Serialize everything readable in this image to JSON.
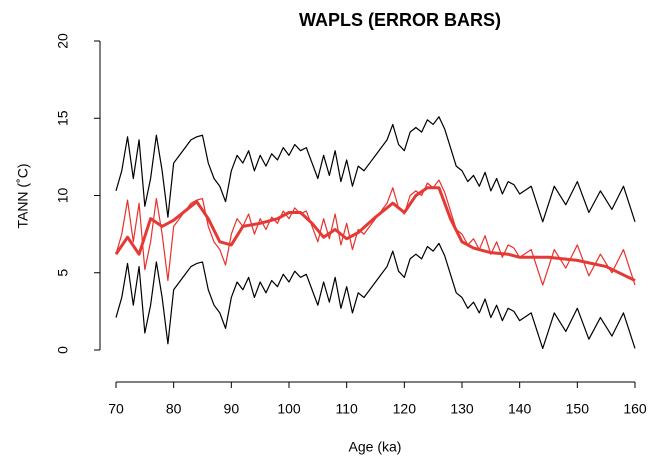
{
  "chart_data": {
    "type": "line",
    "title": "WAPLS (ERROR BARS)",
    "x_label": "Age (ka)",
    "y_label": "TANN (˚C)",
    "xlim": [
      70,
      160
    ],
    "xticks": [
      70,
      80,
      90,
      100,
      110,
      120,
      130,
      140,
      150,
      160
    ],
    "ylim": [
      0,
      20
    ],
    "yticks": [
      0,
      5,
      10,
      15,
      20
    ],
    "x": [
      70,
      71,
      72,
      73,
      74,
      75,
      76,
      77,
      78,
      79,
      80,
      81,
      82,
      83,
      84,
      85,
      86,
      87,
      88,
      89,
      90,
      91,
      92,
      93,
      94,
      95,
      96,
      97,
      98,
      99,
      100,
      101,
      102,
      103,
      104,
      105,
      106,
      107,
      108,
      109,
      110,
      111,
      112,
      113,
      114,
      115,
      116,
      117,
      118,
      119,
      120,
      121,
      122,
      123,
      124,
      125,
      126,
      127,
      128,
      129,
      130,
      131,
      132,
      133,
      134,
      135,
      136,
      137,
      138,
      139,
      140,
      142,
      144,
      146,
      148,
      150,
      152,
      154,
      156,
      158,
      160
    ],
    "series": [
      {
        "color": "#000000",
        "width": 1.2,
        "values": [
          10.3,
          11.6,
          13.8,
          11.1,
          13.6,
          9.3,
          11.1,
          13.9,
          11.6,
          8.6,
          12.1,
          12.6,
          13.1,
          13.6,
          13.8,
          13.9,
          12.1,
          11.1,
          10.6,
          9.6,
          11.6,
          12.6,
          12.1,
          12.9,
          11.6,
          12.6,
          11.9,
          12.7,
          12.3,
          13.1,
          12.6,
          13.3,
          12.9,
          13.1,
          12.1,
          11.1,
          12.6,
          11.3,
          12.9,
          10.9,
          12.3,
          10.6,
          11.9,
          11.6,
          12.1,
          12.6,
          13.1,
          13.6,
          14.6,
          13.3,
          12.9,
          14.1,
          14.4,
          14.1,
          14.9,
          14.6,
          15.1,
          14.3,
          13.1,
          11.9,
          11.6,
          10.9,
          11.3,
          10.6,
          11.5,
          10.3,
          11.1,
          10.1,
          10.9,
          10.7,
          10.1,
          10.6,
          8.3,
          10.6,
          9.4,
          10.9,
          8.9,
          10.3,
          9.1,
          10.6,
          8.3
        ]
      },
      {
        "color": "#000000",
        "width": 1.2,
        "values": [
          2.1,
          3.4,
          5.6,
          2.9,
          5.4,
          1.1,
          2.9,
          5.7,
          3.4,
          0.4,
          3.9,
          4.4,
          4.9,
          5.4,
          5.6,
          5.7,
          3.9,
          2.9,
          2.4,
          1.4,
          3.4,
          4.4,
          3.9,
          4.7,
          3.4,
          4.4,
          3.7,
          4.5,
          4.1,
          4.9,
          4.4,
          5.1,
          4.7,
          4.9,
          3.9,
          2.9,
          4.4,
          3.1,
          4.7,
          2.7,
          4.1,
          2.4,
          3.7,
          3.4,
          3.9,
          4.4,
          4.9,
          5.4,
          6.4,
          5.1,
          4.7,
          5.9,
          6.2,
          5.9,
          6.7,
          6.4,
          6.9,
          6.1,
          4.9,
          3.7,
          3.4,
          2.7,
          3.1,
          2.4,
          3.3,
          2.1,
          2.9,
          1.9,
          2.7,
          2.5,
          1.9,
          2.4,
          0.1,
          2.4,
          1.2,
          2.7,
          0.7,
          2.1,
          0.9,
          2.4,
          0.1
        ]
      },
      {
        "color": "#e8302c",
        "width": 1.2,
        "values": [
          6.2,
          7.5,
          9.7,
          7.0,
          9.5,
          5.2,
          7.0,
          9.8,
          7.5,
          4.5,
          8.0,
          8.5,
          9.0,
          9.5,
          9.7,
          9.8,
          8.0,
          7.0,
          6.5,
          5.5,
          7.5,
          8.5,
          8.0,
          8.8,
          7.5,
          8.5,
          7.8,
          8.6,
          8.2,
          9.0,
          8.5,
          9.2,
          8.8,
          9.0,
          8.0,
          7.0,
          8.5,
          7.2,
          8.8,
          6.8,
          8.2,
          6.5,
          7.8,
          7.5,
          8.0,
          8.5,
          9.0,
          9.5,
          10.5,
          9.2,
          8.8,
          10.0,
          10.3,
          10.0,
          10.8,
          10.5,
          11.0,
          10.2,
          9.0,
          7.8,
          7.5,
          6.8,
          7.2,
          6.5,
          7.4,
          6.2,
          7.0,
          6.0,
          6.8,
          6.6,
          6.0,
          6.5,
          4.2,
          6.5,
          5.3,
          6.8,
          4.8,
          6.2,
          5.0,
          6.5,
          4.2
        ]
      },
      {
        "color": "#e53935",
        "width": 3,
        "x": [
          70,
          72,
          74,
          76,
          78,
          80,
          82,
          84,
          86,
          88,
          90,
          92,
          95,
          98,
          100,
          102,
          104,
          106,
          108,
          110,
          112,
          115,
          118,
          120,
          122,
          124,
          126,
          128,
          130,
          132,
          135,
          138,
          140,
          145,
          150,
          155,
          160
        ],
        "values": [
          6.2,
          7.3,
          6.2,
          8.5,
          8.0,
          8.4,
          9.0,
          9.6,
          8.5,
          7.0,
          6.8,
          8.0,
          8.2,
          8.5,
          8.9,
          8.9,
          8.2,
          7.3,
          7.8,
          7.2,
          7.6,
          8.6,
          9.5,
          8.9,
          10.0,
          10.5,
          10.5,
          8.5,
          7.0,
          6.6,
          6.3,
          6.2,
          6.0,
          6.0,
          5.8,
          5.4,
          4.5
        ]
      }
    ]
  }
}
